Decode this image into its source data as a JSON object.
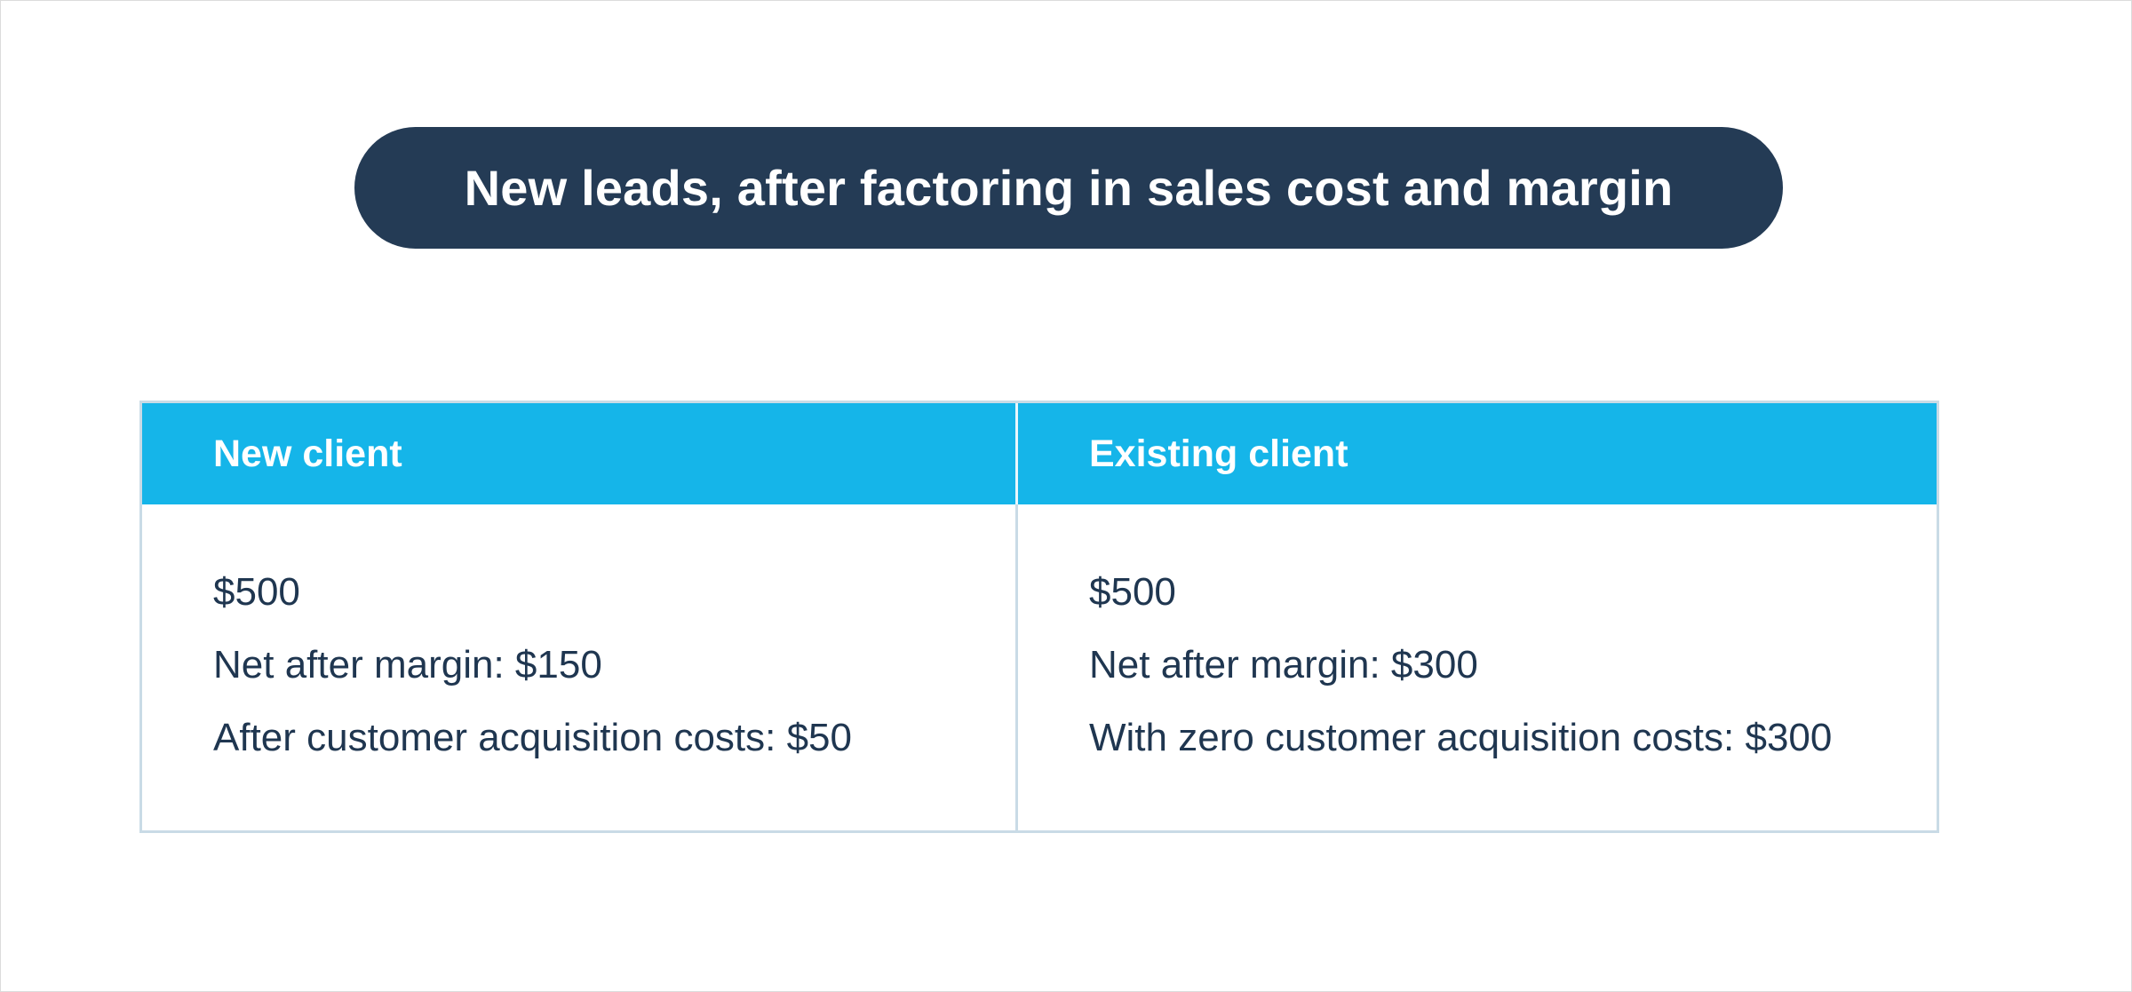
{
  "title": "New leads, after factoring in sales cost and margin",
  "colors": {
    "title_bg": "#243b55",
    "header_bg": "#15b5e9",
    "border": "#c9dbe6",
    "text": "#1f3650"
  },
  "table": {
    "columns": [
      {
        "header": "New client",
        "lines": [
          "$500",
          "Net after margin: $150",
          "After customer acquisition costs: $50"
        ]
      },
      {
        "header": "Existing client",
        "lines": [
          "$500",
          "Net after margin: $300",
          "With zero customer acquisition costs: $300"
        ]
      }
    ]
  }
}
